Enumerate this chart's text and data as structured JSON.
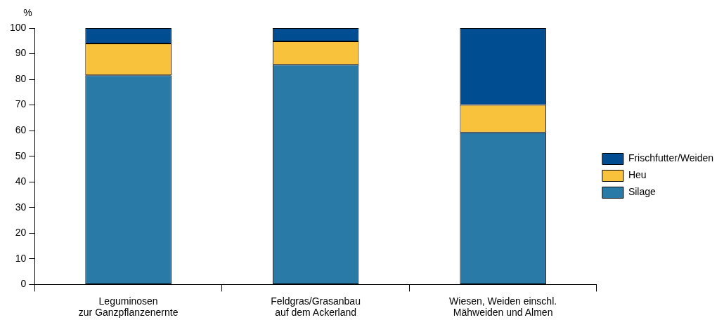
{
  "chart_data": {
    "type": "bar",
    "ylabel": "%",
    "stacked": true,
    "categories": [
      "Leguminosen\nzur Ganzpflanzenernte",
      "Feldgras/Grasanbau\nauf dem Ackerland",
      "Wiesen, Weiden einschl.\nMähweiden und Almen"
    ],
    "series": [
      {
        "name": "Silage",
        "color": "#2a7aa8",
        "values": [
          81.6,
          85.7,
          59.3
        ]
      },
      {
        "name": "Heu",
        "color": "#f9c23c",
        "values": [
          12.4,
          9.1,
          10.7
        ]
      },
      {
        "name": "Frischfutter/Weiden",
        "color": "#004d92",
        "values": [
          6.0,
          5.2,
          30.0
        ]
      }
    ],
    "ylim": [
      0,
      100
    ],
    "yticks": [
      0,
      10,
      20,
      30,
      40,
      50,
      60,
      70,
      80,
      90,
      100
    ],
    "grid": false,
    "legend": "right"
  }
}
